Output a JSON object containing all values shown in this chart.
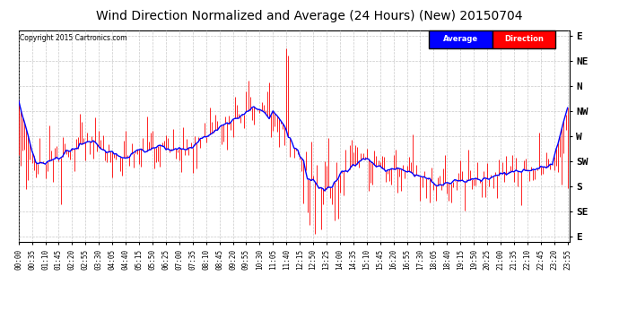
{
  "title": "Wind Direction Normalized and Average (24 Hours) (New) 20150704",
  "copyright": "Copyright 2015 Cartronics.com",
  "ytick_labels": [
    "E",
    "NE",
    "N",
    "NW",
    "W",
    "SW",
    "S",
    "SE",
    "E"
  ],
  "ytick_values": [
    0,
    45,
    90,
    135,
    180,
    225,
    270,
    315,
    360
  ],
  "ylim": [
    370,
    -10
  ],
  "background_color": "#ffffff",
  "plot_bg_color": "#ffffff",
  "grid_color": "#bbbbbb",
  "title_fontsize": 10,
  "legend_avg_color": "#0000ff",
  "legend_dir_color": "#ff0000",
  "n_points": 288,
  "xtick_labels": [
    "00:00",
    "00:35",
    "01:10",
    "01:45",
    "02:20",
    "02:55",
    "03:30",
    "04:05",
    "04:40",
    "05:15",
    "05:50",
    "06:25",
    "07:00",
    "07:35",
    "08:10",
    "08:45",
    "09:20",
    "09:55",
    "10:30",
    "11:05",
    "11:40",
    "12:15",
    "12:50",
    "13:25",
    "14:00",
    "14:35",
    "15:10",
    "15:45",
    "16:20",
    "16:55",
    "17:30",
    "18:05",
    "18:40",
    "19:15",
    "19:50",
    "20:25",
    "21:00",
    "21:35",
    "22:10",
    "22:45",
    "23:20",
    "23:55"
  ]
}
